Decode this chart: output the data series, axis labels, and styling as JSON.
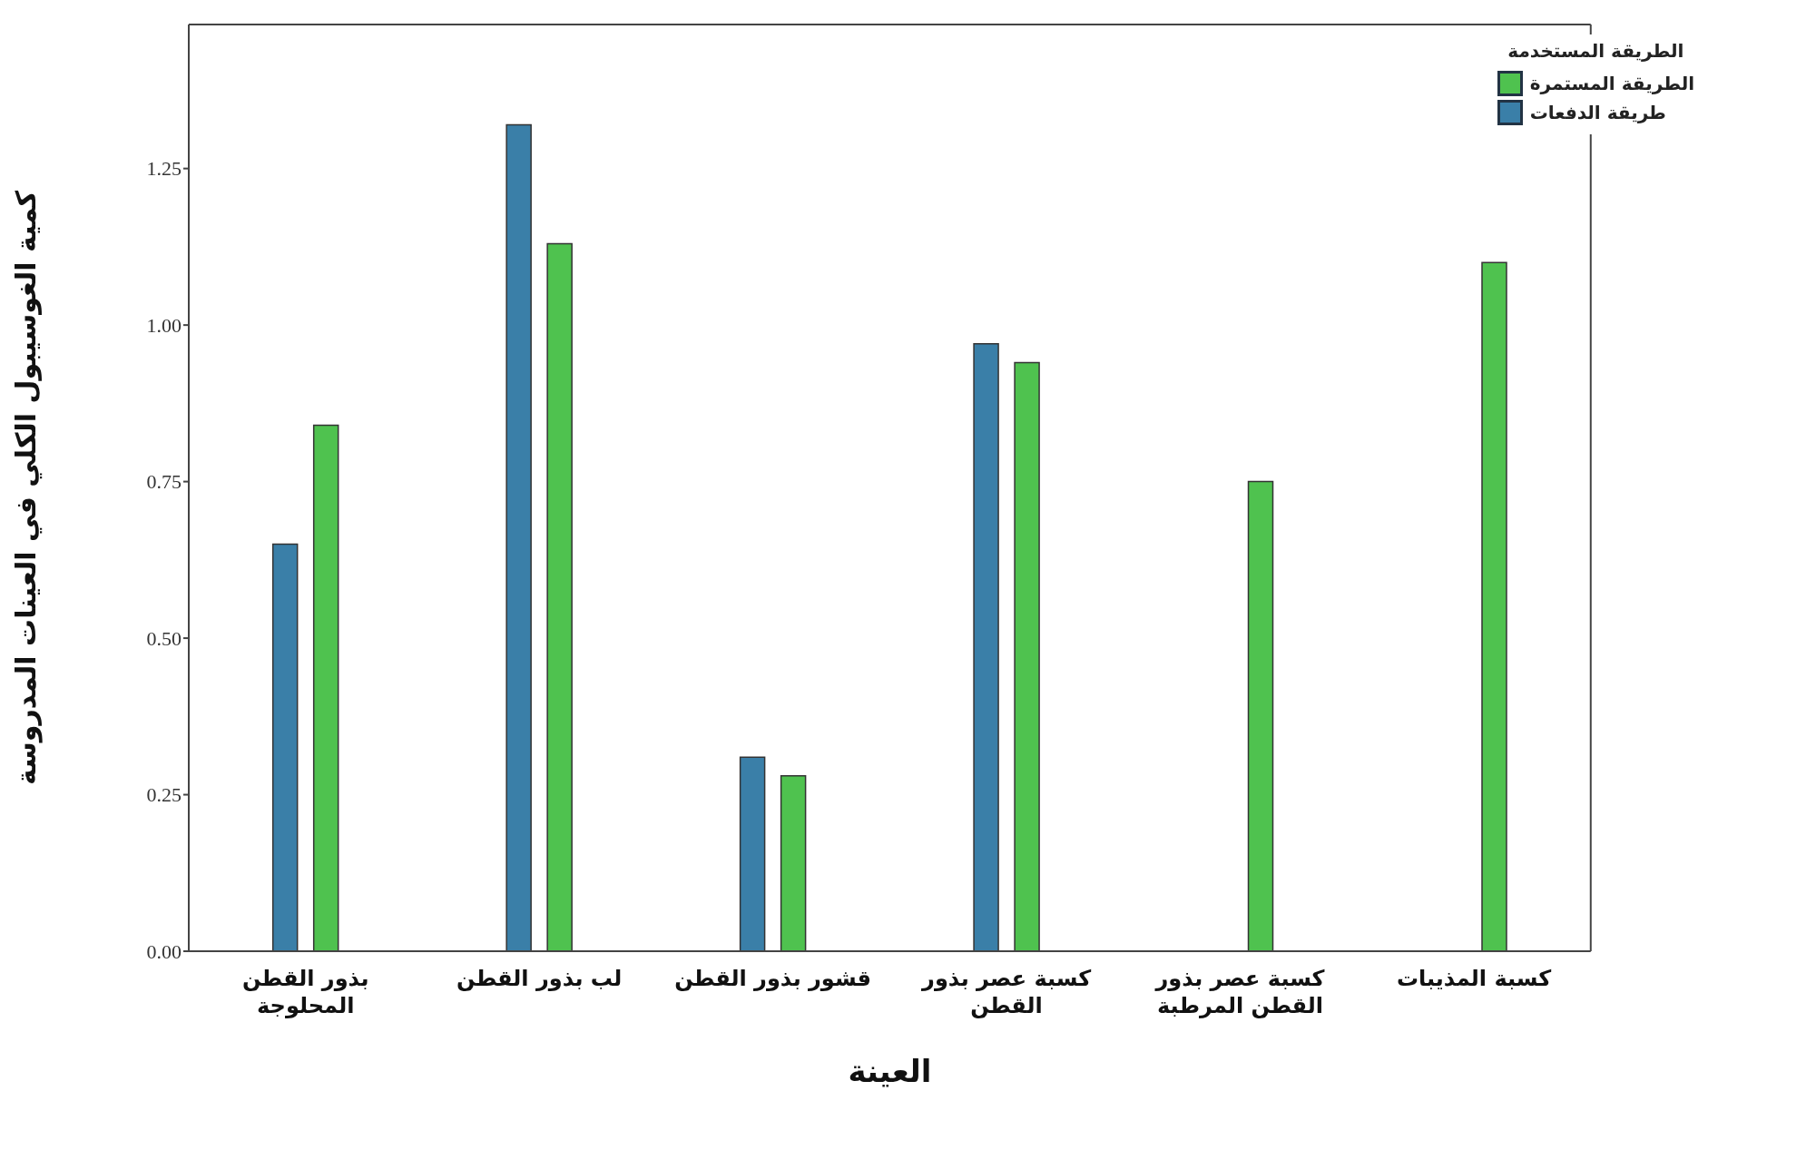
{
  "chart_data": {
    "type": "bar",
    "xlabel": "العينة",
    "ylabel": "كمية الغوسيبول الكلي في العينات المدروسة",
    "legend_title": "الطريقة المستخدمة",
    "categories": [
      "بذور القطن المحلوجة",
      "لب بذور القطن",
      "قشور بذور القطن",
      "كسبة عصر بذور القطن",
      "كسبة عصر بذور القطن المرطبة",
      "كسبة المذيبات"
    ],
    "series": [
      {
        "name": "طريقة الدفعات",
        "color": "#3a7fa8",
        "values": [
          0.65,
          1.32,
          0.31,
          0.97,
          null,
          null
        ]
      },
      {
        "name": "الطريقة المستمرة",
        "color": "#4fc24f",
        "values": [
          0.84,
          1.13,
          0.28,
          0.94,
          0.75,
          1.1
        ]
      }
    ],
    "ylim": [
      0,
      1.48
    ],
    "yticks": [
      {
        "value": 0,
        "label": "0.00"
      },
      {
        "value": 0.25,
        "label": "0.25"
      },
      {
        "value": 0.5,
        "label": "0.50"
      },
      {
        "value": 0.75,
        "label": "0.75"
      },
      {
        "value": 1,
        "label": "1.00"
      },
      {
        "value": 1.25,
        "label": "1.25"
      }
    ],
    "grid": false,
    "legend": "top right"
  }
}
